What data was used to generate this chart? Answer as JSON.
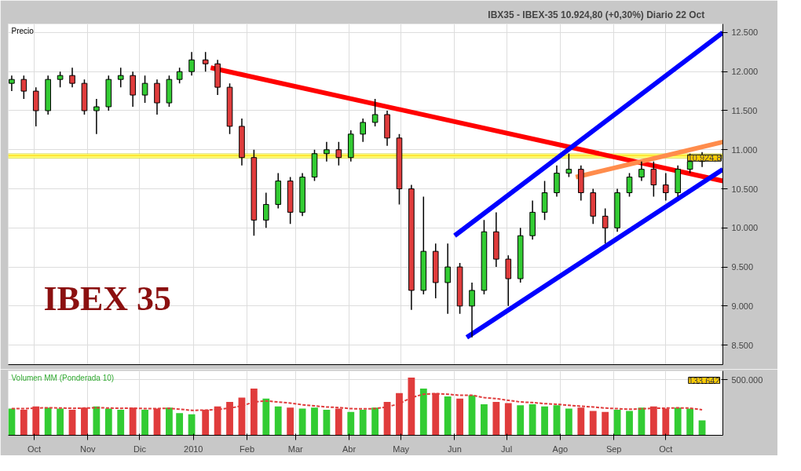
{
  "chart_data": [
    {
      "type": "candlestick",
      "title": "IBX35 - IBEX-35    10.924,80 (+0,30%)    Diario  22 Oct",
      "annotations": [
        {
          "text": "Precio"
        },
        {
          "text": "IBEX 35"
        }
      ],
      "x": [
        "2009-09-18",
        "2009-09-25",
        "2009-10-02",
        "2009-10-09",
        "2009-10-16",
        "2009-10-23",
        "2009-10-30",
        "2009-11-06",
        "2009-11-13",
        "2009-11-20",
        "2009-11-27",
        "2009-12-04",
        "2009-12-11",
        "2009-12-18",
        "2009-12-24",
        "2009-12-31",
        "2010-01-08",
        "2010-01-15",
        "2010-01-22",
        "2010-01-29",
        "2010-02-05",
        "2010-02-12",
        "2010-02-19",
        "2010-02-26",
        "2010-03-05",
        "2010-03-12",
        "2010-03-19",
        "2010-03-26",
        "2010-04-02",
        "2010-04-09",
        "2010-04-16",
        "2010-04-23",
        "2010-04-30",
        "2010-05-07",
        "2010-05-14",
        "2010-05-21",
        "2010-05-28",
        "2010-06-04",
        "2010-06-11",
        "2010-06-18",
        "2010-06-25",
        "2010-07-02",
        "2010-07-09",
        "2010-07-16",
        "2010-07-23",
        "2010-07-30",
        "2010-08-06",
        "2010-08-13",
        "2010-08-20",
        "2010-08-27",
        "2010-09-03",
        "2010-09-10",
        "2010-09-17",
        "2010-09-24",
        "2010-10-01",
        "2010-10-08",
        "2010-10-15",
        "2010-10-22"
      ],
      "ohlc": [
        [
          11850,
          11950,
          11750,
          11900
        ],
        [
          11900,
          11950,
          11650,
          11750
        ],
        [
          11750,
          11800,
          11300,
          11500
        ],
        [
          11500,
          11950,
          11450,
          11900
        ],
        [
          11900,
          12000,
          11800,
          11950
        ],
        [
          11950,
          12050,
          11800,
          11850
        ],
        [
          11850,
          11900,
          11450,
          11500
        ],
        [
          11500,
          11650,
          11200,
          11550
        ],
        [
          11550,
          11950,
          11500,
          11900
        ],
        [
          11900,
          12050,
          11800,
          11950
        ],
        [
          11950,
          12000,
          11550,
          11700
        ],
        [
          11700,
          11950,
          11600,
          11850
        ],
        [
          11850,
          11900,
          11450,
          11600
        ],
        [
          11600,
          11950,
          11550,
          11900
        ],
        [
          11900,
          12050,
          11850,
          12000
        ],
        [
          12000,
          12250,
          11950,
          12150
        ],
        [
          12150,
          12250,
          12000,
          12100
        ],
        [
          12100,
          12150,
          11700,
          11800
        ],
        [
          11800,
          11850,
          11200,
          11300
        ],
        [
          11300,
          11400,
          10800,
          10900
        ],
        [
          10900,
          11000,
          9900,
          10100
        ],
        [
          10100,
          10450,
          10000,
          10300
        ],
        [
          10300,
          10700,
          10250,
          10600
        ],
        [
          10600,
          10650,
          10050,
          10200
        ],
        [
          10200,
          10700,
          10150,
          10650
        ],
        [
          10650,
          11000,
          10600,
          10950
        ],
        [
          10950,
          11100,
          10850,
          11000
        ],
        [
          11000,
          11100,
          10800,
          10900
        ],
        [
          10900,
          11250,
          10850,
          11200
        ],
        [
          11200,
          11400,
          11100,
          11350
        ],
        [
          11350,
          11650,
          11300,
          11450
        ],
        [
          11450,
          11500,
          11050,
          11150
        ],
        [
          11150,
          11200,
          10300,
          10500
        ],
        [
          10500,
          10550,
          8950,
          9200
        ],
        [
          9200,
          10400,
          9150,
          9700
        ],
        [
          9700,
          9800,
          9100,
          9300
        ],
        [
          9300,
          9800,
          8900,
          9500
        ],
        [
          9500,
          9550,
          8900,
          9000
        ],
        [
          9000,
          9300,
          8600,
          9200
        ],
        [
          9200,
          10100,
          9150,
          9950
        ],
        [
          9950,
          10200,
          9500,
          9600
        ],
        [
          9600,
          9650,
          9000,
          9350
        ],
        [
          9350,
          10000,
          9300,
          9900
        ],
        [
          9900,
          10350,
          9850,
          10200
        ],
        [
          10200,
          10600,
          10100,
          10450
        ],
        [
          10450,
          10800,
          10400,
          10700
        ],
        [
          10700,
          10950,
          10650,
          10750
        ],
        [
          10750,
          10800,
          10350,
          10450
        ],
        [
          10450,
          10500,
          10050,
          10150
        ],
        [
          10150,
          10250,
          9800,
          10000
        ],
        [
          10000,
          10500,
          9950,
          10450
        ],
        [
          10450,
          10700,
          10400,
          10650
        ],
        [
          10650,
          10850,
          10600,
          10750
        ],
        [
          10750,
          10850,
          10400,
          10550
        ],
        [
          10550,
          10700,
          10350,
          10450
        ],
        [
          10450,
          10800,
          10400,
          10750
        ],
        [
          10750,
          10950,
          10700,
          10850
        ],
        [
          10850,
          10970,
          10780,
          10925
        ]
      ],
      "colors": [
        "#33cc33",
        "#e03c3c",
        "#e03c3c",
        "#33cc33",
        "#33cc33",
        "#e03c3c",
        "#e03c3c",
        "#33cc33",
        "#33cc33",
        "#33cc33",
        "#e03c3c",
        "#33cc33",
        "#e03c3c",
        "#33cc33",
        "#33cc33",
        "#33cc33",
        "#e03c3c",
        "#e03c3c",
        "#e03c3c",
        "#e03c3c",
        "#e03c3c",
        "#33cc33",
        "#33cc33",
        "#e03c3c",
        "#33cc33",
        "#33cc33",
        "#33cc33",
        "#e03c3c",
        "#33cc33",
        "#33cc33",
        "#33cc33",
        "#e03c3c",
        "#e03c3c",
        "#e03c3c",
        "#33cc33",
        "#e03c3c",
        "#33cc33",
        "#e03c3c",
        "#33cc33",
        "#33cc33",
        "#e03c3c",
        "#e03c3c",
        "#33cc33",
        "#33cc33",
        "#33cc33",
        "#33cc33",
        "#33cc33",
        "#e03c3c",
        "#e03c3c",
        "#e03c3c",
        "#33cc33",
        "#33cc33",
        "#33cc33",
        "#e03c3c",
        "#e03c3c",
        "#33cc33",
        "#33cc33",
        "#33cc33"
      ],
      "series": [
        {
          "type": "line",
          "color": "#ff0000",
          "x": [
            "2010-01-11",
            "2010-11-03"
          ],
          "values": [
            12050,
            10600
          ]
        },
        {
          "type": "line",
          "color": "#0000ff",
          "x": [
            "2010-06-01",
            "2010-11-03"
          ],
          "values": [
            9900,
            12500
          ]
        },
        {
          "type": "line",
          "color": "#0000ff",
          "x": [
            "2010-06-08",
            "2010-11-03"
          ],
          "values": [
            8600,
            10750
          ]
        },
        {
          "type": "line",
          "color": "#ff8c4c",
          "x": [
            "2010-08-10",
            "2010-11-03"
          ],
          "values": [
            10650,
            11100
          ]
        }
      ],
      "bands": [
        {
          "axis": "y",
          "from": 10890,
          "to": 10950,
          "color": "#ffff66"
        }
      ],
      "ref_lines": [
        {
          "axis": "y",
          "value": 10924.8,
          "label": "10.924,8",
          "color": "#ffcc00"
        }
      ],
      "xlim": [
        "2009-09-16",
        "2010-11-03"
      ],
      "xticks": [
        {
          "value": "2009-10-01",
          "label": null
        },
        {
          "value": "2009-11-01",
          "label": null
        },
        {
          "value": "2009-12-01",
          "label": null
        },
        {
          "value": "2010-01-01",
          "label": null
        },
        {
          "value": "2010-02-01",
          "label": null
        },
        {
          "value": "2010-03-01",
          "label": null
        },
        {
          "value": "2010-04-01",
          "label": null
        },
        {
          "value": "2010-05-01",
          "label": null
        },
        {
          "value": "2010-06-01",
          "label": null
        },
        {
          "value": "2010-07-01",
          "label": null
        },
        {
          "value": "2010-08-01",
          "label": null
        },
        {
          "value": "2010-09-01",
          "label": null
        },
        {
          "value": "2010-10-01",
          "label": null
        }
      ],
      "ylim": [
        8250,
        12610
      ],
      "yticks": [
        {
          "value": 8500,
          "label": "8.500"
        },
        {
          "value": 9000,
          "label": "9.000"
        },
        {
          "value": 9500,
          "label": "9.500"
        },
        {
          "value": 10000,
          "label": "10.000"
        },
        {
          "value": 10500,
          "label": "10.500"
        },
        {
          "value": 11000,
          "label": "11.000"
        },
        {
          "value": 11500,
          "label": "11.500"
        },
        {
          "value": 12000,
          "label": "12.000"
        },
        {
          "value": 12500,
          "label": "12.500"
        }
      ],
      "grid": true,
      "tick_labels": "y"
    },
    {
      "type": "bar",
      "annotations": [
        {
          "text": "Volumen MM (Ponderada 10)"
        },
        {
          "text": "133.642"
        }
      ],
      "x": [
        "2009-09-18",
        "2009-09-25",
        "2009-10-02",
        "2009-10-09",
        "2009-10-16",
        "2009-10-23",
        "2009-10-30",
        "2009-11-06",
        "2009-11-13",
        "2009-11-20",
        "2009-11-27",
        "2009-12-04",
        "2009-12-11",
        "2009-12-18",
        "2009-12-24",
        "2009-12-31",
        "2010-01-08",
        "2010-01-15",
        "2010-01-22",
        "2010-01-29",
        "2010-02-05",
        "2010-02-12",
        "2010-02-19",
        "2010-02-26",
        "2010-03-05",
        "2010-03-12",
        "2010-03-19",
        "2010-03-26",
        "2010-04-02",
        "2010-04-09",
        "2010-04-16",
        "2010-04-23",
        "2010-04-30",
        "2010-05-07",
        "2010-05-14",
        "2010-05-21",
        "2010-05-28",
        "2010-06-04",
        "2010-06-11",
        "2010-06-18",
        "2010-06-25",
        "2010-07-02",
        "2010-07-09",
        "2010-07-16",
        "2010-07-23",
        "2010-07-30",
        "2010-08-06",
        "2010-08-13",
        "2010-08-20",
        "2010-08-27",
        "2010-09-03",
        "2010-09-10",
        "2010-09-17",
        "2010-09-24",
        "2010-10-01",
        "2010-10-08",
        "2010-10-15",
        "2010-10-22"
      ],
      "series": [
        {
          "type": "bar",
          "values": [
            240000,
            230000,
            260000,
            250000,
            240000,
            230000,
            250000,
            260000,
            240000,
            230000,
            250000,
            230000,
            240000,
            250000,
            200000,
            190000,
            230000,
            260000,
            300000,
            340000,
            420000,
            330000,
            260000,
            250000,
            240000,
            250000,
            230000,
            240000,
            210000,
            230000,
            250000,
            300000,
            380000,
            520000,
            420000,
            380000,
            350000,
            330000,
            360000,
            280000,
            300000,
            290000,
            270000,
            280000,
            260000,
            270000,
            240000,
            250000,
            220000,
            210000,
            230000,
            220000,
            250000,
            260000,
            240000,
            250000,
            240000,
            133642
          ],
          "colors": [
            "#33cc33",
            "#e03c3c",
            "#e03c3c",
            "#33cc33",
            "#33cc33",
            "#e03c3c",
            "#e03c3c",
            "#33cc33",
            "#33cc33",
            "#33cc33",
            "#e03c3c",
            "#33cc33",
            "#e03c3c",
            "#33cc33",
            "#33cc33",
            "#33cc33",
            "#e03c3c",
            "#e03c3c",
            "#e03c3c",
            "#e03c3c",
            "#e03c3c",
            "#33cc33",
            "#33cc33",
            "#e03c3c",
            "#33cc33",
            "#33cc33",
            "#33cc33",
            "#e03c3c",
            "#33cc33",
            "#33cc33",
            "#33cc33",
            "#e03c3c",
            "#e03c3c",
            "#e03c3c",
            "#33cc33",
            "#e03c3c",
            "#33cc33",
            "#e03c3c",
            "#33cc33",
            "#33cc33",
            "#e03c3c",
            "#e03c3c",
            "#33cc33",
            "#33cc33",
            "#33cc33",
            "#33cc33",
            "#33cc33",
            "#e03c3c",
            "#e03c3c",
            "#e03c3c",
            "#33cc33",
            "#33cc33",
            "#33cc33",
            "#e03c3c",
            "#e03c3c",
            "#33cc33",
            "#33cc33",
            "#33cc33"
          ]
        },
        {
          "type": "line",
          "color": "#e03c3c",
          "line_style": "dashed",
          "values": [
            240000,
            240000,
            245000,
            248000,
            246000,
            243000,
            245000,
            248000,
            246000,
            243000,
            244000,
            241000,
            241000,
            243000,
            235000,
            225000,
            226000,
            233000,
            245000,
            265000,
            300000,
            310000,
            300000,
            290000,
            275000,
            265000,
            255000,
            250000,
            240000,
            238000,
            240000,
            255000,
            285000,
            340000,
            370000,
            375000,
            370000,
            360000,
            360000,
            340000,
            330000,
            315000,
            300000,
            295000,
            285000,
            280000,
            270000,
            262000,
            255000,
            245000,
            240000,
            235000,
            238000,
            243000,
            245000,
            247000,
            245000,
            230000
          ]
        }
      ],
      "xlim": [
        "2009-09-16",
        "2010-11-03"
      ],
      "xticks": [
        {
          "value": "2009-10-01",
          "label": "Oct"
        },
        {
          "value": "2009-11-01",
          "label": "Nov"
        },
        {
          "value": "2009-12-01",
          "label": "Dic"
        },
        {
          "value": "2010-01-01",
          "label": "2010"
        },
        {
          "value": "2010-02-01",
          "label": "Feb"
        },
        {
          "value": "2010-03-01",
          "label": "Mar"
        },
        {
          "value": "2010-04-01",
          "label": "Abr"
        },
        {
          "value": "2010-05-01",
          "label": "May"
        },
        {
          "value": "2010-06-01",
          "label": "Jun"
        },
        {
          "value": "2010-07-01",
          "label": "Jul"
        },
        {
          "value": "2010-08-01",
          "label": "Ago"
        },
        {
          "value": "2010-09-01",
          "label": "Sep"
        },
        {
          "value": "2010-10-01",
          "label": "Oct"
        }
      ],
      "ylim": [
        0,
        580000
      ],
      "yticks": [
        {
          "value": 500000,
          "label": "500.000"
        }
      ],
      "grid": true
    }
  ]
}
